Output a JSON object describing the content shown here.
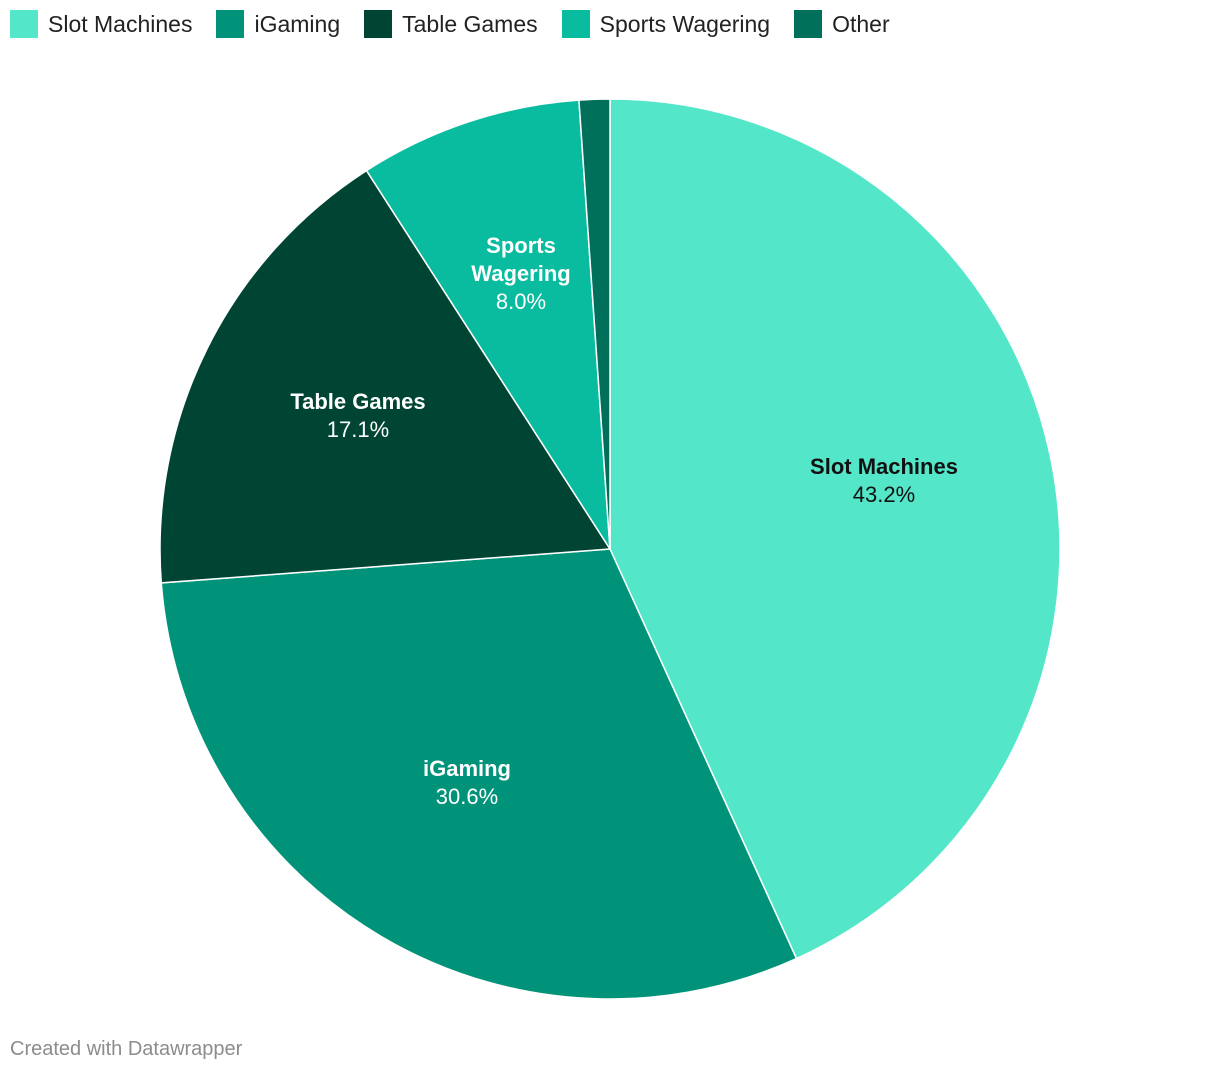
{
  "chart_data": {
    "type": "pie",
    "title": "",
    "legend_position": "top-left",
    "slices": [
      {
        "name": "Slot Machines",
        "value": 43.2,
        "label": "43.2%",
        "color": "#54e6c8",
        "text_color": "#111111",
        "label_lines": [
          "Slot Machines"
        ]
      },
      {
        "name": "iGaming",
        "value": 30.6,
        "label": "30.6%",
        "color": "#00937a",
        "text_color": "#ffffff",
        "label_lines": [
          "iGaming"
        ]
      },
      {
        "name": "Table Games",
        "value": 17.1,
        "label": "17.1%",
        "color": "#004533",
        "text_color": "#ffffff",
        "label_lines": [
          "Table Games"
        ]
      },
      {
        "name": "Sports Wagering",
        "value": 8.0,
        "label": "8.0%",
        "color": "#0abc9f",
        "text_color": "#ffffff",
        "label_lines": [
          "Sports",
          "Wagering"
        ]
      },
      {
        "name": "Other",
        "value": 1.1,
        "label": "",
        "color": "#00705a",
        "text_color": "#ffffff",
        "label_lines": []
      }
    ]
  },
  "footer": {
    "credit": "Created with Datawrapper"
  }
}
